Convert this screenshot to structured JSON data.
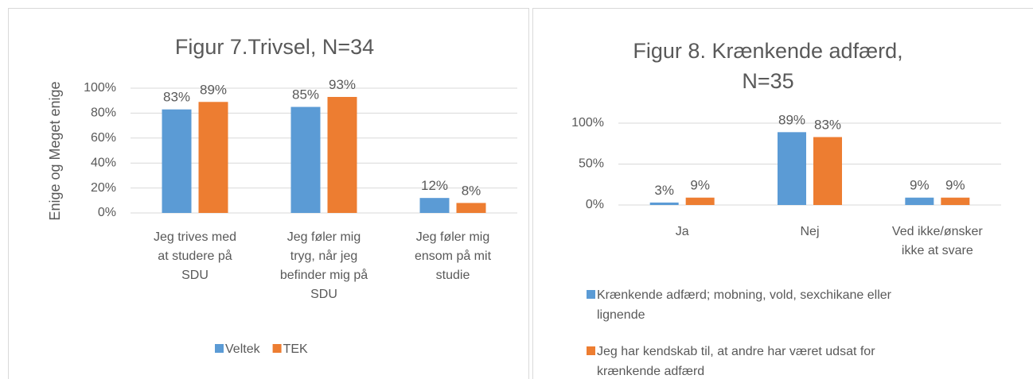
{
  "chart_data": [
    {
      "type": "bar",
      "title": "Figur 7.Trivsel, N=34",
      "y_label": "Enige og Meget enige",
      "categories": [
        "Jeg trives med at studere på SDU",
        "Jeg føler mig tryg, når jeg befinder mig på SDU",
        "Jeg føler mig ensom på mit studie"
      ],
      "series": [
        {
          "name": "Veltek",
          "color": "#5b9bd5",
          "values": [
            83,
            85,
            12
          ],
          "value_labels": [
            "83%",
            "85%",
            "12%"
          ]
        },
        {
          "name": "TEK",
          "color": "#ed7d31",
          "values": [
            89,
            93,
            8
          ],
          "value_labels": [
            "89%",
            "93%",
            "8%"
          ]
        }
      ],
      "ylim": [
        0,
        100
      ],
      "yticks": [
        {
          "value": 0,
          "label": "0%"
        },
        {
          "value": 20,
          "label": "20%"
        },
        {
          "value": 40,
          "label": "40%"
        },
        {
          "value": 60,
          "label": "60%"
        },
        {
          "value": 80,
          "label": "80%"
        },
        {
          "value": 100,
          "label": "100%"
        }
      ],
      "grid": true,
      "legend": "bottom"
    },
    {
      "type": "bar",
      "title": "Figur 8. Krænkende adfærd, N=35",
      "categories": [
        "Ja",
        "Nej",
        "Ved ikke/ønsker ikke at svare"
      ],
      "series": [
        {
          "name": "Krænkende adfærd; mobning, vold, sexchikane eller lignende",
          "color": "#5b9bd5",
          "values": [
            3,
            89,
            9
          ],
          "value_labels": [
            "3%",
            "89%",
            "9%"
          ]
        },
        {
          "name": "Jeg har kendskab til, at andre har været udsat for krænkende adfærd",
          "color": "#ed7d31",
          "values": [
            9,
            83,
            9
          ],
          "value_labels": [
            "9%",
            "83%",
            "9%"
          ]
        }
      ],
      "ylim": [
        0,
        100
      ],
      "yticks": [
        {
          "value": 0,
          "label": "0%"
        },
        {
          "value": 50,
          "label": "50%"
        },
        {
          "value": 100,
          "label": "100%"
        }
      ],
      "grid": true,
      "legend": "bottom"
    }
  ]
}
